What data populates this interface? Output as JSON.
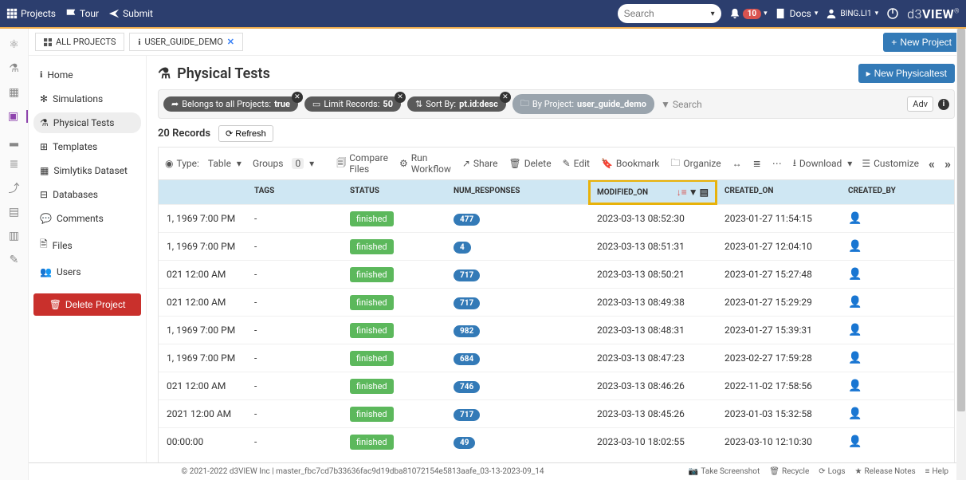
{
  "nav": {
    "projects": "Projects",
    "tour": "Tour",
    "submit": "Submit",
    "search_placeholder": "Search",
    "notif_count": "10",
    "docs": "Docs",
    "user": "BING.LI1",
    "logo_a": "d3",
    "logo_b": "VIEW"
  },
  "tabs": {
    "all": "ALL PROJECTS",
    "current": "USER_GUIDE_DEMO",
    "new_project": "New Project"
  },
  "sidebar": {
    "home": "Home",
    "simulations": "Simulations",
    "physical": "Physical Tests",
    "templates": "Templates",
    "simlytiks": "Simlytiks Dataset",
    "databases": "Databases",
    "comments": "Comments",
    "files": "Files",
    "users": "Users",
    "delete": "Delete Project"
  },
  "page": {
    "title": "Physical Tests",
    "new_btn": "New Physicaltest",
    "pill1_label": "Belongs to all Projects:",
    "pill1_val": "true",
    "pill2_label": "Limit Records:",
    "pill2_val": "50",
    "pill3_label": "Sort By:",
    "pill3_val": "pt.id:desc",
    "pill4_label": "By Project:",
    "pill4_val": "user_guide_demo",
    "search": "Search",
    "adv": "Adv",
    "records": "20 Records",
    "refresh": "Refresh"
  },
  "toolbar": {
    "type_label": "Type:",
    "type_val": "Table",
    "groups": "Groups",
    "groups_n": "0",
    "compare": "Compare Files",
    "workflow": "Run Workflow",
    "share": "Share",
    "delete": "Delete",
    "edit": "Edit",
    "bookmark": "Bookmark",
    "organize": "Organize",
    "download": "Download",
    "customize": "Customize"
  },
  "columns": {
    "tags": "TAGS",
    "status": "STATUS",
    "num": "NUM_RESPONSES",
    "mod": "MODIFIED_ON",
    "created": "CREATED_ON",
    "by": "CREATED_BY"
  },
  "rows": [
    {
      "d": "1, 1969 7:00 PM",
      "tags": "-",
      "status": "finished",
      "num": "477",
      "mod": "2023-03-13 08:52:30",
      "created": "2023-01-27 11:54:15"
    },
    {
      "d": "1, 1969 7:00 PM",
      "tags": "-",
      "status": "finished",
      "num": "4",
      "mod": "2023-03-13 08:51:31",
      "created": "2023-01-27 12:04:10"
    },
    {
      "d": "021 12:00 AM",
      "tags": "-",
      "status": "finished",
      "num": "717",
      "mod": "2023-03-13 08:50:21",
      "created": "2023-01-27 15:27:48"
    },
    {
      "d": "021 12:00 AM",
      "tags": "-",
      "status": "finished",
      "num": "717",
      "mod": "2023-03-13 08:49:38",
      "created": "2023-01-27 15:29:29"
    },
    {
      "d": "1, 1969 7:00 PM",
      "tags": "-",
      "status": "finished",
      "num": "982",
      "mod": "2023-03-13 08:48:31",
      "created": "2023-01-27 15:39:31"
    },
    {
      "d": "1, 1969 7:00 PM",
      "tags": "-",
      "status": "finished",
      "num": "684",
      "mod": "2023-03-13 08:47:23",
      "created": "2023-02-27 17:59:28"
    },
    {
      "d": "021 12:00 AM",
      "tags": "-",
      "status": "finished",
      "num": "746",
      "mod": "2023-03-13 08:46:26",
      "created": "2022-11-02 17:58:56"
    },
    {
      "d": "2021 12:00 AM",
      "tags": "-",
      "status": "finished",
      "num": "717",
      "mod": "2023-03-13 08:45:26",
      "created": "2023-01-03 15:32:58"
    },
    {
      "d": "00:00:00",
      "tags": "-",
      "status": "finished",
      "num": "49",
      "mod": "2023-03-10 18:02:55",
      "created": "2023-03-10 12:10:30"
    }
  ],
  "footer": {
    "copy": "© 2021-2022 d3VIEW Inc | master_fbc7cd7b33636fac9d19dba81072154e5813aafe_03-13-2023-09_14",
    "screenshot": "Take Screenshot",
    "recycle": "Recycle",
    "logs": "Logs",
    "release": "Release Notes",
    "help": "Help"
  }
}
